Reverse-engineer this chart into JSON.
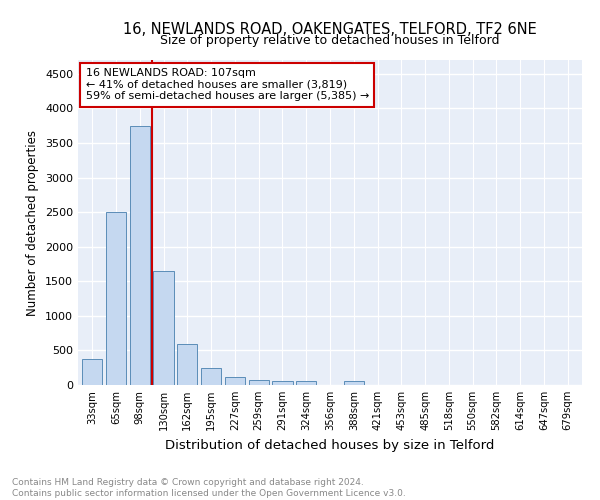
{
  "title": "16, NEWLANDS ROAD, OAKENGATES, TELFORD, TF2 6NE",
  "subtitle": "Size of property relative to detached houses in Telford",
  "xlabel": "Distribution of detached houses by size in Telford",
  "ylabel": "Number of detached properties",
  "categories": [
    "33sqm",
    "65sqm",
    "98sqm",
    "130sqm",
    "162sqm",
    "195sqm",
    "227sqm",
    "259sqm",
    "291sqm",
    "324sqm",
    "356sqm",
    "388sqm",
    "421sqm",
    "453sqm",
    "485sqm",
    "518sqm",
    "550sqm",
    "582sqm",
    "614sqm",
    "647sqm",
    "679sqm"
  ],
  "values": [
    380,
    2500,
    3750,
    1650,
    600,
    240,
    110,
    70,
    60,
    60,
    0,
    60,
    0,
    0,
    0,
    0,
    0,
    0,
    0,
    0,
    0
  ],
  "bar_color": "#c5d8f0",
  "bar_edge_color": "#5b8db8",
  "vline_x": 2.5,
  "vline_color": "#cc0000",
  "annotation_line1": "16 NEWLANDS ROAD: 107sqm",
  "annotation_line2": "← 41% of detached houses are smaller (3,819)",
  "annotation_line3": "59% of semi-detached houses are larger (5,385) →",
  "annotation_box_color": "#ffffff",
  "annotation_box_edge": "#cc0000",
  "ylim": [
    0,
    4700
  ],
  "yticks": [
    0,
    500,
    1000,
    1500,
    2000,
    2500,
    3000,
    3500,
    4000,
    4500
  ],
  "bg_color": "#e8eef8",
  "grid_color": "#ffffff",
  "footnote": "Contains HM Land Registry data © Crown copyright and database right 2024.\nContains public sector information licensed under the Open Government Licence v3.0.",
  "title_fontsize": 10.5,
  "subtitle_fontsize": 9,
  "xlabel_fontsize": 9.5,
  "ylabel_fontsize": 8.5,
  "footnote_fontsize": 6.5,
  "annot_fontsize": 8
}
